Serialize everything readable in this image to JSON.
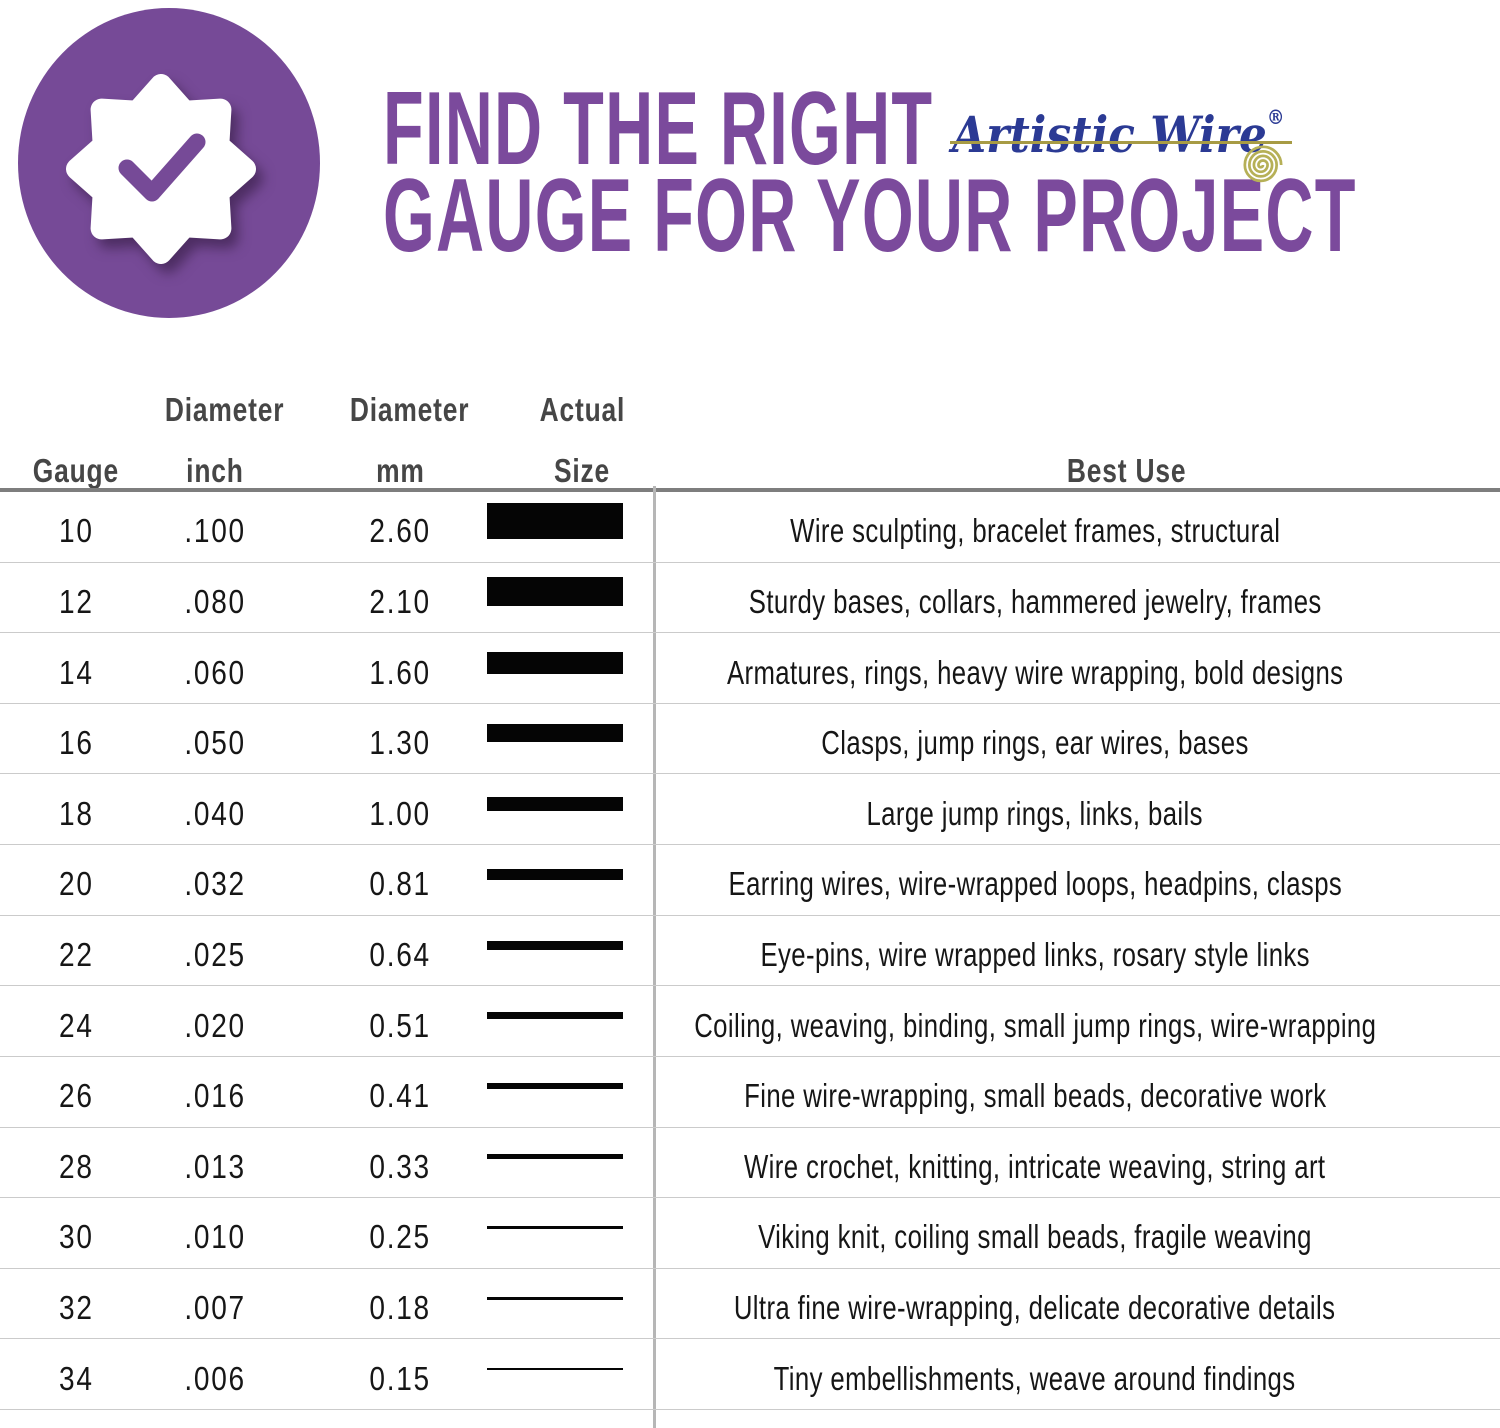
{
  "header": {
    "badge_icon": "check-seal-icon",
    "title_line1": "FIND THE RIGHT",
    "title_line2": "GAUGE FOR YOUR PROJECT",
    "brand_name": "Artistic Wire",
    "brand_registered_mark": "®",
    "colors": {
      "title_purple": "#7b4a9c",
      "badge_purple": "#764a97",
      "brand_blue": "#2b3a94",
      "brand_gold": "#a79b44",
      "bar_black": "#050505"
    }
  },
  "table": {
    "header_row": {
      "gauge": "Gauge",
      "inch_top": "Diameter",
      "inch_bottom": "inch",
      "mm_top": "Diameter",
      "mm_bottom": "mm",
      "size_top": "Actual",
      "size_bottom": "Size",
      "best_use": "Best Use"
    }
  },
  "chart_data": {
    "type": "table",
    "title": "FIND THE RIGHT GAUGE FOR YOUR PROJECT",
    "columns": [
      "Gauge",
      "Diameter inch",
      "Diameter mm",
      "Actual Size",
      "Best Use"
    ],
    "rows": [
      {
        "gauge": "10",
        "inch": ".100",
        "mm": "2.60",
        "mm_value": 2.6,
        "best_use": "Wire sculpting, bracelet frames, structural"
      },
      {
        "gauge": "12",
        "inch": ".080",
        "mm": "2.10",
        "mm_value": 2.1,
        "best_use": "Sturdy bases, collars, hammered jewelry, frames"
      },
      {
        "gauge": "14",
        "inch": ".060",
        "mm": "1.60",
        "mm_value": 1.6,
        "best_use": "Armatures, rings, heavy wire wrapping, bold designs"
      },
      {
        "gauge": "16",
        "inch": ".050",
        "mm": "1.30",
        "mm_value": 1.3,
        "best_use": "Clasps, jump rings, ear wires, bases"
      },
      {
        "gauge": "18",
        "inch": ".040",
        "mm": "1.00",
        "mm_value": 1.0,
        "best_use": "Large jump rings, links, bails"
      },
      {
        "gauge": "20",
        "inch": ".032",
        "mm": "0.81",
        "mm_value": 0.81,
        "best_use": "Earring wires, wire-wrapped loops, headpins, clasps"
      },
      {
        "gauge": "22",
        "inch": ".025",
        "mm": "0.64",
        "mm_value": 0.64,
        "best_use": "Eye-pins, wire wrapped links, rosary style links"
      },
      {
        "gauge": "24",
        "inch": ".020",
        "mm": "0.51",
        "mm_value": 0.51,
        "best_use": "Coiling, weaving, binding, small jump rings, wire-wrapping"
      },
      {
        "gauge": "26",
        "inch": ".016",
        "mm": "0.41",
        "mm_value": 0.41,
        "best_use": "Fine wire-wrapping, small beads, decorative work"
      },
      {
        "gauge": "28",
        "inch": ".013",
        "mm": "0.33",
        "mm_value": 0.33,
        "best_use": "Wire crochet, knitting, intricate weaving, string art"
      },
      {
        "gauge": "30",
        "inch": ".010",
        "mm": "0.25",
        "mm_value": 0.25,
        "best_use": "Viking knit, coiling small beads, fragile weaving"
      },
      {
        "gauge": "32",
        "inch": ".007",
        "mm": "0.18",
        "mm_value": 0.18,
        "best_use": "Ultra fine wire-wrapping, delicate decorative details"
      },
      {
        "gauge": "34",
        "inch": ".006",
        "mm": "0.15",
        "mm_value": 0.15,
        "best_use": "Tiny embellishments, weave around findings"
      }
    ]
  }
}
